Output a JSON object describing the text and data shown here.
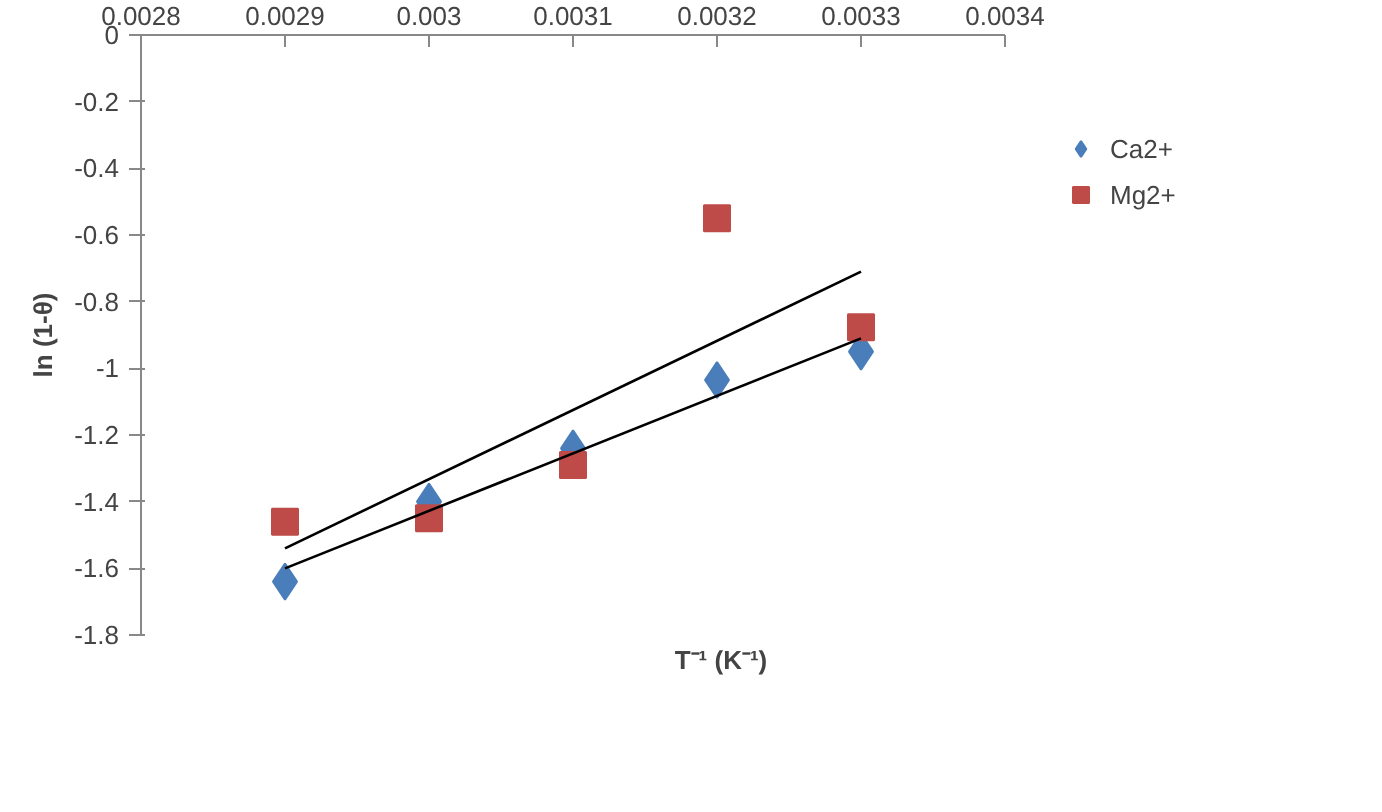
{
  "chart_data": {
    "type": "scatter",
    "xlabel": "T⁻¹ (K⁻¹)",
    "ylabel": "ln (1-θ)",
    "xlim": [
      0.0028,
      0.0034
    ],
    "xticks": [
      0.0028,
      0.0029,
      0.003,
      0.0031,
      0.0032,
      0.0033,
      0.0034
    ],
    "ylim": [
      -1.8,
      0
    ],
    "yticks": [
      -1.8,
      -1.6,
      -1.4,
      -1.2,
      -1,
      -0.8,
      -0.6,
      -0.4,
      -0.2,
      0
    ],
    "grid": false,
    "legend": "right",
    "series": [
      {
        "name": "Ca2+",
        "color": "#4a7ebb",
        "marker": "diamond",
        "x": [
          0.0029,
          0.003,
          0.0031,
          0.0032,
          0.0033
        ],
        "values": [
          -1.64,
          -1.4,
          -1.24,
          -1.035,
          -0.95
        ]
      },
      {
        "name": "Mg2+",
        "color": "#be4b48",
        "marker": "square",
        "x": [
          0.0029,
          0.003,
          0.0031,
          0.0032,
          0.0033
        ],
        "values": [
          -1.46,
          -1.45,
          -1.29,
          -0.55,
          -0.877
        ]
      },
      {
        "type": "line",
        "color": "#000000",
        "x": [
          0.0029,
          0.0033
        ],
        "values": [
          -1.6,
          -0.91
        ]
      },
      {
        "type": "line",
        "color": "#000000",
        "x": [
          0.0029,
          0.0033
        ],
        "values": [
          -1.54,
          -0.71
        ]
      }
    ]
  }
}
